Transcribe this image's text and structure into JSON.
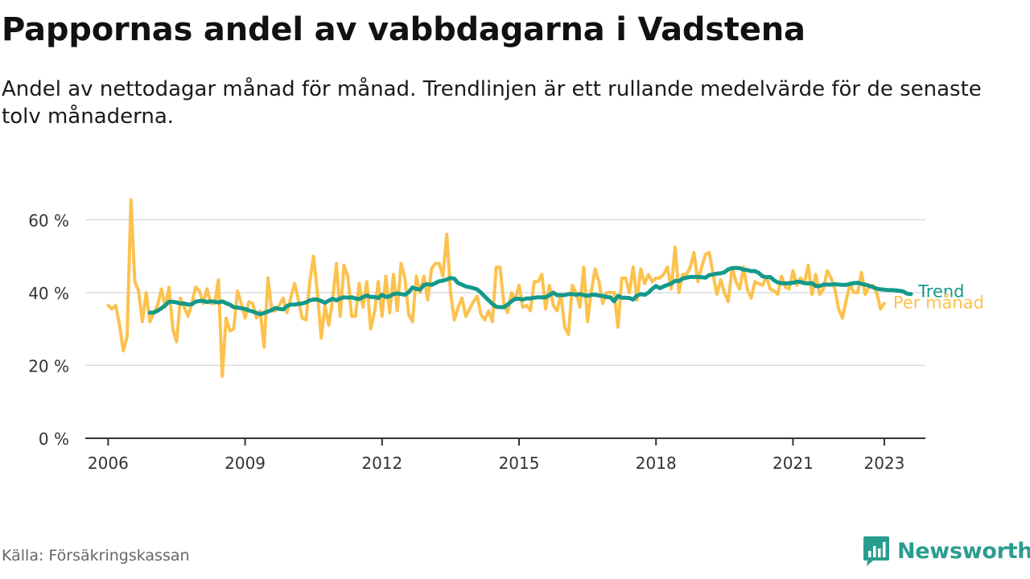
{
  "title": "Pappornas andel av vabbdagarna i Vadstena",
  "subtitle": "Andel av nettodagar månad för månad. Trendlinjen är ett rullande medelvärde för de senaste tolv månaderna.",
  "source": "Källa: Försäkringskassan",
  "brand": "Newsworthy",
  "colors": {
    "monthly": "#fcc24e",
    "trend": "#14998a",
    "grid": "#dddddd",
    "axis": "#333333",
    "brand": "#2a9d8f"
  },
  "chart_data": {
    "type": "line",
    "x_start": "2006-01",
    "x_step": "month",
    "xlim": [
      2005.5,
      2023.9
    ],
    "ylim": [
      0,
      65
    ],
    "y_ticks": [
      0,
      20,
      40,
      60
    ],
    "y_tick_labels": [
      "0 %",
      "20 %",
      "40 %",
      "60 %"
    ],
    "x_ticks": [
      2006,
      2009,
      2012,
      2015,
      2018,
      2021,
      2023
    ],
    "x_tick_labels": [
      "2006",
      "2009",
      "2012",
      "2015",
      "2018",
      "2021",
      "2023"
    ],
    "series": [
      {
        "name": "Per månad",
        "values": [
          36.5,
          35.5,
          36.5,
          31,
          24,
          28,
          65.5,
          43,
          40.5,
          32,
          40,
          32,
          34.5,
          36.5,
          41,
          36,
          41.5,
          30,
          26.5,
          38.5,
          36,
          33.5,
          37,
          41.5,
          40.5,
          37,
          41,
          37,
          37,
          43.5,
          17,
          33,
          29.5,
          30,
          40.5,
          37,
          33,
          37.5,
          37,
          33,
          35,
          25,
          44,
          35,
          35,
          36.5,
          38.5,
          34.5,
          38.5,
          42.5,
          38,
          33,
          32.5,
          43,
          50,
          40,
          27.5,
          36.5,
          31,
          38,
          48,
          33.5,
          47.5,
          44.5,
          33.5,
          33.5,
          42.5,
          36,
          43,
          30,
          34.5,
          43,
          33.5,
          44.5,
          34.5,
          45,
          35,
          48,
          44,
          34,
          32,
          44.5,
          40,
          44.5,
          38,
          46.5,
          48,
          48,
          44.5,
          56,
          40,
          32.5,
          36,
          38.5,
          33.5,
          35.5,
          37.5,
          39,
          34,
          32.5,
          35,
          32,
          47,
          47,
          37,
          34.5,
          40,
          38,
          42,
          36,
          36.5,
          35,
          43,
          43,
          45,
          35.5,
          42,
          36.5,
          35,
          39.5,
          30.5,
          28.5,
          42,
          40,
          36,
          47,
          32,
          40.5,
          46.5,
          43,
          37,
          40,
          40,
          40,
          30.5,
          44,
          44,
          40,
          47,
          38,
          46.5,
          42.5,
          45,
          43,
          44,
          44,
          45,
          47,
          41,
          52.5,
          40,
          45,
          45,
          47,
          51,
          43,
          47,
          50.5,
          51,
          45,
          39.5,
          43.5,
          40,
          37.5,
          47,
          43,
          41,
          47,
          41,
          38.5,
          43,
          42.5,
          42,
          44.5,
          41,
          40.5,
          39.5,
          44.5,
          41.5,
          41,
          46,
          42,
          44,
          42.5,
          47.5,
          39.5,
          45,
          39.5,
          41,
          46,
          44,
          41,
          35.5,
          33,
          38,
          42.5,
          40,
          40,
          45.5,
          39.5,
          41.5,
          42,
          40,
          35.5,
          37
        ]
      },
      {
        "name": "Trend",
        "start_index": 11,
        "values": [
          34.5,
          34.5,
          35,
          35.7,
          36.5,
          37.5,
          37.5,
          37.3,
          37,
          37,
          36.7,
          36.8,
          37.5,
          37.7,
          37.7,
          37.4,
          37.6,
          37.5,
          37.3,
          37.6,
          37.1,
          36.7,
          36,
          35.9,
          35.7,
          35.5,
          35.1,
          34.8,
          34.4,
          34.1,
          34.4,
          34.8,
          35.2,
          35.8,
          35.5,
          35.4,
          36.3,
          36.7,
          36.7,
          36.9,
          37,
          37.3,
          37.9,
          38.1,
          38.1,
          37.7,
          37.2,
          37.8,
          38.3,
          37.9,
          38.4,
          38.7,
          38.6,
          38.7,
          38.4,
          38.2,
          38.8,
          39.2,
          38.8,
          38.8,
          38.5,
          39.4,
          38.8,
          39,
          39.6,
          39.8,
          39.6,
          39.4,
          40.1,
          41.4,
          41,
          40.8,
          42.1,
          42.3,
          42.1,
          42.6,
          43.1,
          43.3,
          43.6,
          44,
          43.8,
          42.6,
          42.2,
          41.7,
          41.5,
          41.2,
          40.9,
          40,
          38.9,
          37.9,
          36.9,
          36.1,
          36,
          36,
          36.7,
          37.6,
          38.3,
          38.3,
          38.1,
          38.4,
          38.4,
          38.6,
          38.7,
          38.7,
          38.7,
          39.3,
          40,
          39.3,
          39.3,
          39.3,
          39.6,
          39.6,
          39.4,
          39.6,
          39.3,
          39.1,
          39.4,
          39.4,
          39.2,
          39.1,
          38.8,
          38.7,
          37.6,
          39.1,
          38.6,
          38.6,
          38.5,
          38.1,
          39.2,
          39.6,
          39.4,
          40,
          41,
          41.8,
          41.2,
          41.7,
          42.1,
          42.5,
          43.2,
          43.2,
          43.8,
          44.1,
          44.3,
          44.3,
          44.3,
          44.2,
          44.1,
          44.8,
          45,
          45.2,
          45.3,
          45.6,
          46.4,
          46.7,
          46.8,
          46.7,
          46.3,
          46.2,
          45.9,
          45.9,
          45.4,
          44.5,
          44.2,
          44.3,
          43.4,
          42.8,
          42.6,
          42.5,
          42.6,
          42.7,
          43,
          42.9,
          42.6,
          42.5,
          42.6,
          41.8,
          41.8,
          42.2,
          42.2,
          42.2,
          42.3,
          42.2,
          42.1,
          42.1,
          42.4,
          42.6,
          42.7,
          42.4,
          42.2,
          41.9,
          41.5,
          41.1,
          40.9,
          40.8,
          40.7,
          40.7,
          40.6,
          40.5,
          40.3,
          39.7,
          39.6
        ]
      }
    ]
  }
}
